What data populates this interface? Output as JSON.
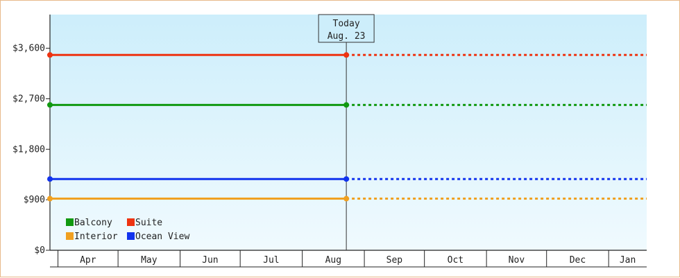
{
  "chart_data": {
    "type": "line",
    "title": "",
    "xlabel": "",
    "ylabel": "",
    "ylim": [
      0,
      4200
    ],
    "yticks": [
      {
        "value": 0,
        "label": "$0"
      },
      {
        "value": 900,
        "label": "$900"
      },
      {
        "value": 1800,
        "label": "$1,800"
      },
      {
        "value": 2700,
        "label": "$2,700"
      },
      {
        "value": 3600,
        "label": "$3,600"
      }
    ],
    "months": [
      "Apr",
      "May",
      "Jun",
      "Jul",
      "Aug",
      "Sep",
      "Oct",
      "Nov",
      "Dec",
      "Jan"
    ],
    "today": {
      "line1": "Today",
      "line2": "Aug. 23",
      "date": "2023-08-23"
    },
    "x_range": [
      "2023-03-28",
      "2024-01-20"
    ],
    "series": [
      {
        "name": "Suite",
        "color": "#ee3311",
        "values": [
          {
            "x": "2023-03-28",
            "y": 3480
          },
          {
            "x": "2023-08-23",
            "y": 3480
          }
        ],
        "projection": 3480
      },
      {
        "name": "Balcony",
        "color": "#119911",
        "values": [
          {
            "x": "2023-03-28",
            "y": 2590
          },
          {
            "x": "2023-08-23",
            "y": 2590
          }
        ],
        "projection": 2590
      },
      {
        "name": "Ocean View",
        "color": "#1133ee",
        "values": [
          {
            "x": "2023-03-28",
            "y": 1270
          },
          {
            "x": "2023-08-23",
            "y": 1270
          }
        ],
        "projection": 1270
      },
      {
        "name": "Interior",
        "color": "#f0a020",
        "values": [
          {
            "x": "2023-03-28",
            "y": 920
          },
          {
            "x": "2023-08-23",
            "y": 920
          }
        ],
        "projection": 920
      }
    ],
    "legend": {
      "position": "bottom-left",
      "order": [
        "Balcony",
        "Suite",
        "Interior",
        "Ocean View"
      ]
    },
    "grid": false
  }
}
